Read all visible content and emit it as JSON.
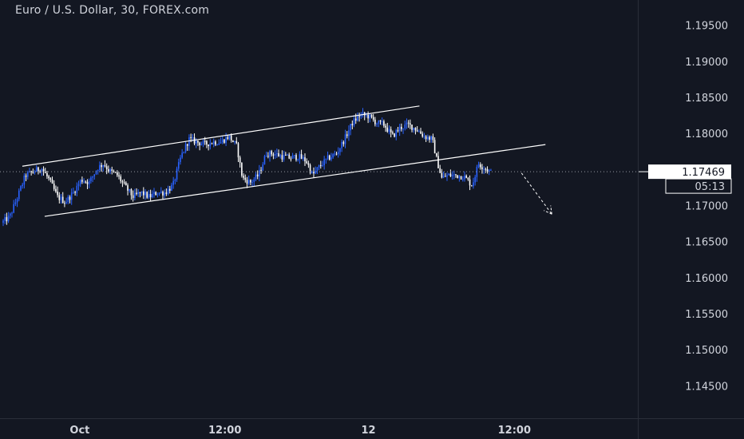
{
  "chart_data": {
    "type": "candlestick",
    "title": "Euro / U.S. Dollar, 30, FOREX.com",
    "ylim": [
      1.1405,
      1.1985
    ],
    "y_ticks": [
      {
        "value": 1.195,
        "label": "1.19500"
      },
      {
        "value": 1.19,
        "label": "1.19000"
      },
      {
        "value": 1.185,
        "label": "1.18500"
      },
      {
        "value": 1.18,
        "label": "1.18000"
      },
      {
        "value": 1.175,
        "label": "1.17500"
      },
      {
        "value": 1.17,
        "label": "1.17000"
      },
      {
        "value": 1.165,
        "label": "1.16500"
      },
      {
        "value": 1.16,
        "label": "1.16000"
      },
      {
        "value": 1.155,
        "label": "1.15500"
      },
      {
        "value": 1.15,
        "label": "1.15000"
      },
      {
        "value": 1.145,
        "label": "1.14500"
      }
    ],
    "xlim": [
      -2,
      931
    ],
    "x_ticks": [
      {
        "x": 98,
        "label": "Oct"
      },
      {
        "x": 280,
        "label": "12:00"
      },
      {
        "x": 460,
        "label": "12"
      },
      {
        "x": 643,
        "label": "12:00"
      }
    ],
    "price_path": [
      [
        0,
        1.1676
      ],
      [
        10,
        1.1684
      ],
      [
        20,
        1.1712
      ],
      [
        30,
        1.1742
      ],
      [
        42,
        1.1748
      ],
      [
        50,
        1.1752
      ],
      [
        60,
        1.1735
      ],
      [
        70,
        1.1712
      ],
      [
        80,
        1.1705
      ],
      [
        90,
        1.1718
      ],
      [
        100,
        1.1736
      ],
      [
        110,
        1.1732
      ],
      [
        120,
        1.1752
      ],
      [
        128,
        1.1758
      ],
      [
        135,
        1.1748
      ],
      [
        145,
        1.1742
      ],
      [
        155,
        1.1726
      ],
      [
        165,
        1.1712
      ],
      [
        175,
        1.1718
      ],
      [
        185,
        1.1712
      ],
      [
        195,
        1.1718
      ],
      [
        205,
        1.1718
      ],
      [
        215,
        1.1728
      ],
      [
        225,
        1.1768
      ],
      [
        235,
        1.1792
      ],
      [
        245,
        1.1788
      ],
      [
        255,
        1.1785
      ],
      [
        265,
        1.1788
      ],
      [
        275,
        1.1788
      ],
      [
        285,
        1.1796
      ],
      [
        295,
        1.1782
      ],
      [
        302,
        1.1738
      ],
      [
        312,
        1.1732
      ],
      [
        322,
        1.1742
      ],
      [
        332,
        1.1772
      ],
      [
        342,
        1.1772
      ],
      [
        352,
        1.1768
      ],
      [
        362,
        1.1766
      ],
      [
        372,
        1.1768
      ],
      [
        382,
        1.1762
      ],
      [
        390,
        1.1742
      ],
      [
        400,
        1.1756
      ],
      [
        410,
        1.1766
      ],
      [
        420,
        1.1772
      ],
      [
        430,
        1.1792
      ],
      [
        440,
        1.1815
      ],
      [
        450,
        1.1826
      ],
      [
        460,
        1.1824
      ],
      [
        470,
        1.1815
      ],
      [
        480,
        1.1812
      ],
      [
        490,
        1.1796
      ],
      [
        500,
        1.1808
      ],
      [
        510,
        1.1812
      ],
      [
        520,
        1.1806
      ],
      [
        530,
        1.1796
      ],
      [
        540,
        1.1792
      ],
      [
        546,
        1.1762
      ],
      [
        552,
        1.1738
      ],
      [
        560,
        1.1742
      ],
      [
        570,
        1.1742
      ],
      [
        580,
        1.174
      ],
      [
        590,
        1.1728
      ],
      [
        598,
        1.1758
      ],
      [
        606,
        1.1752
      ],
      [
        614,
        1.1746
      ]
    ],
    "last_price": {
      "value": 1.17469,
      "label": "1.17469",
      "countdown": "05:13"
    },
    "annotations": {
      "channel_upper": [
        [
          26,
          1.17545
        ],
        [
          524,
          1.1838
        ]
      ],
      "channel_lower": [
        [
          54,
          1.1685
        ],
        [
          682,
          1.17845
        ]
      ],
      "forecast_arrow": [
        [
          652,
          1.1745
        ],
        [
          690,
          1.1688
        ]
      ]
    },
    "colors": {
      "background": "#131722",
      "candle_up": "#2962ff",
      "candle_down": "#ffffff",
      "axis_text": "#d1d4dc",
      "trendline": "#ffffff",
      "price_tag_bg": "#ffffff",
      "price_tag_text": "#131722"
    }
  }
}
